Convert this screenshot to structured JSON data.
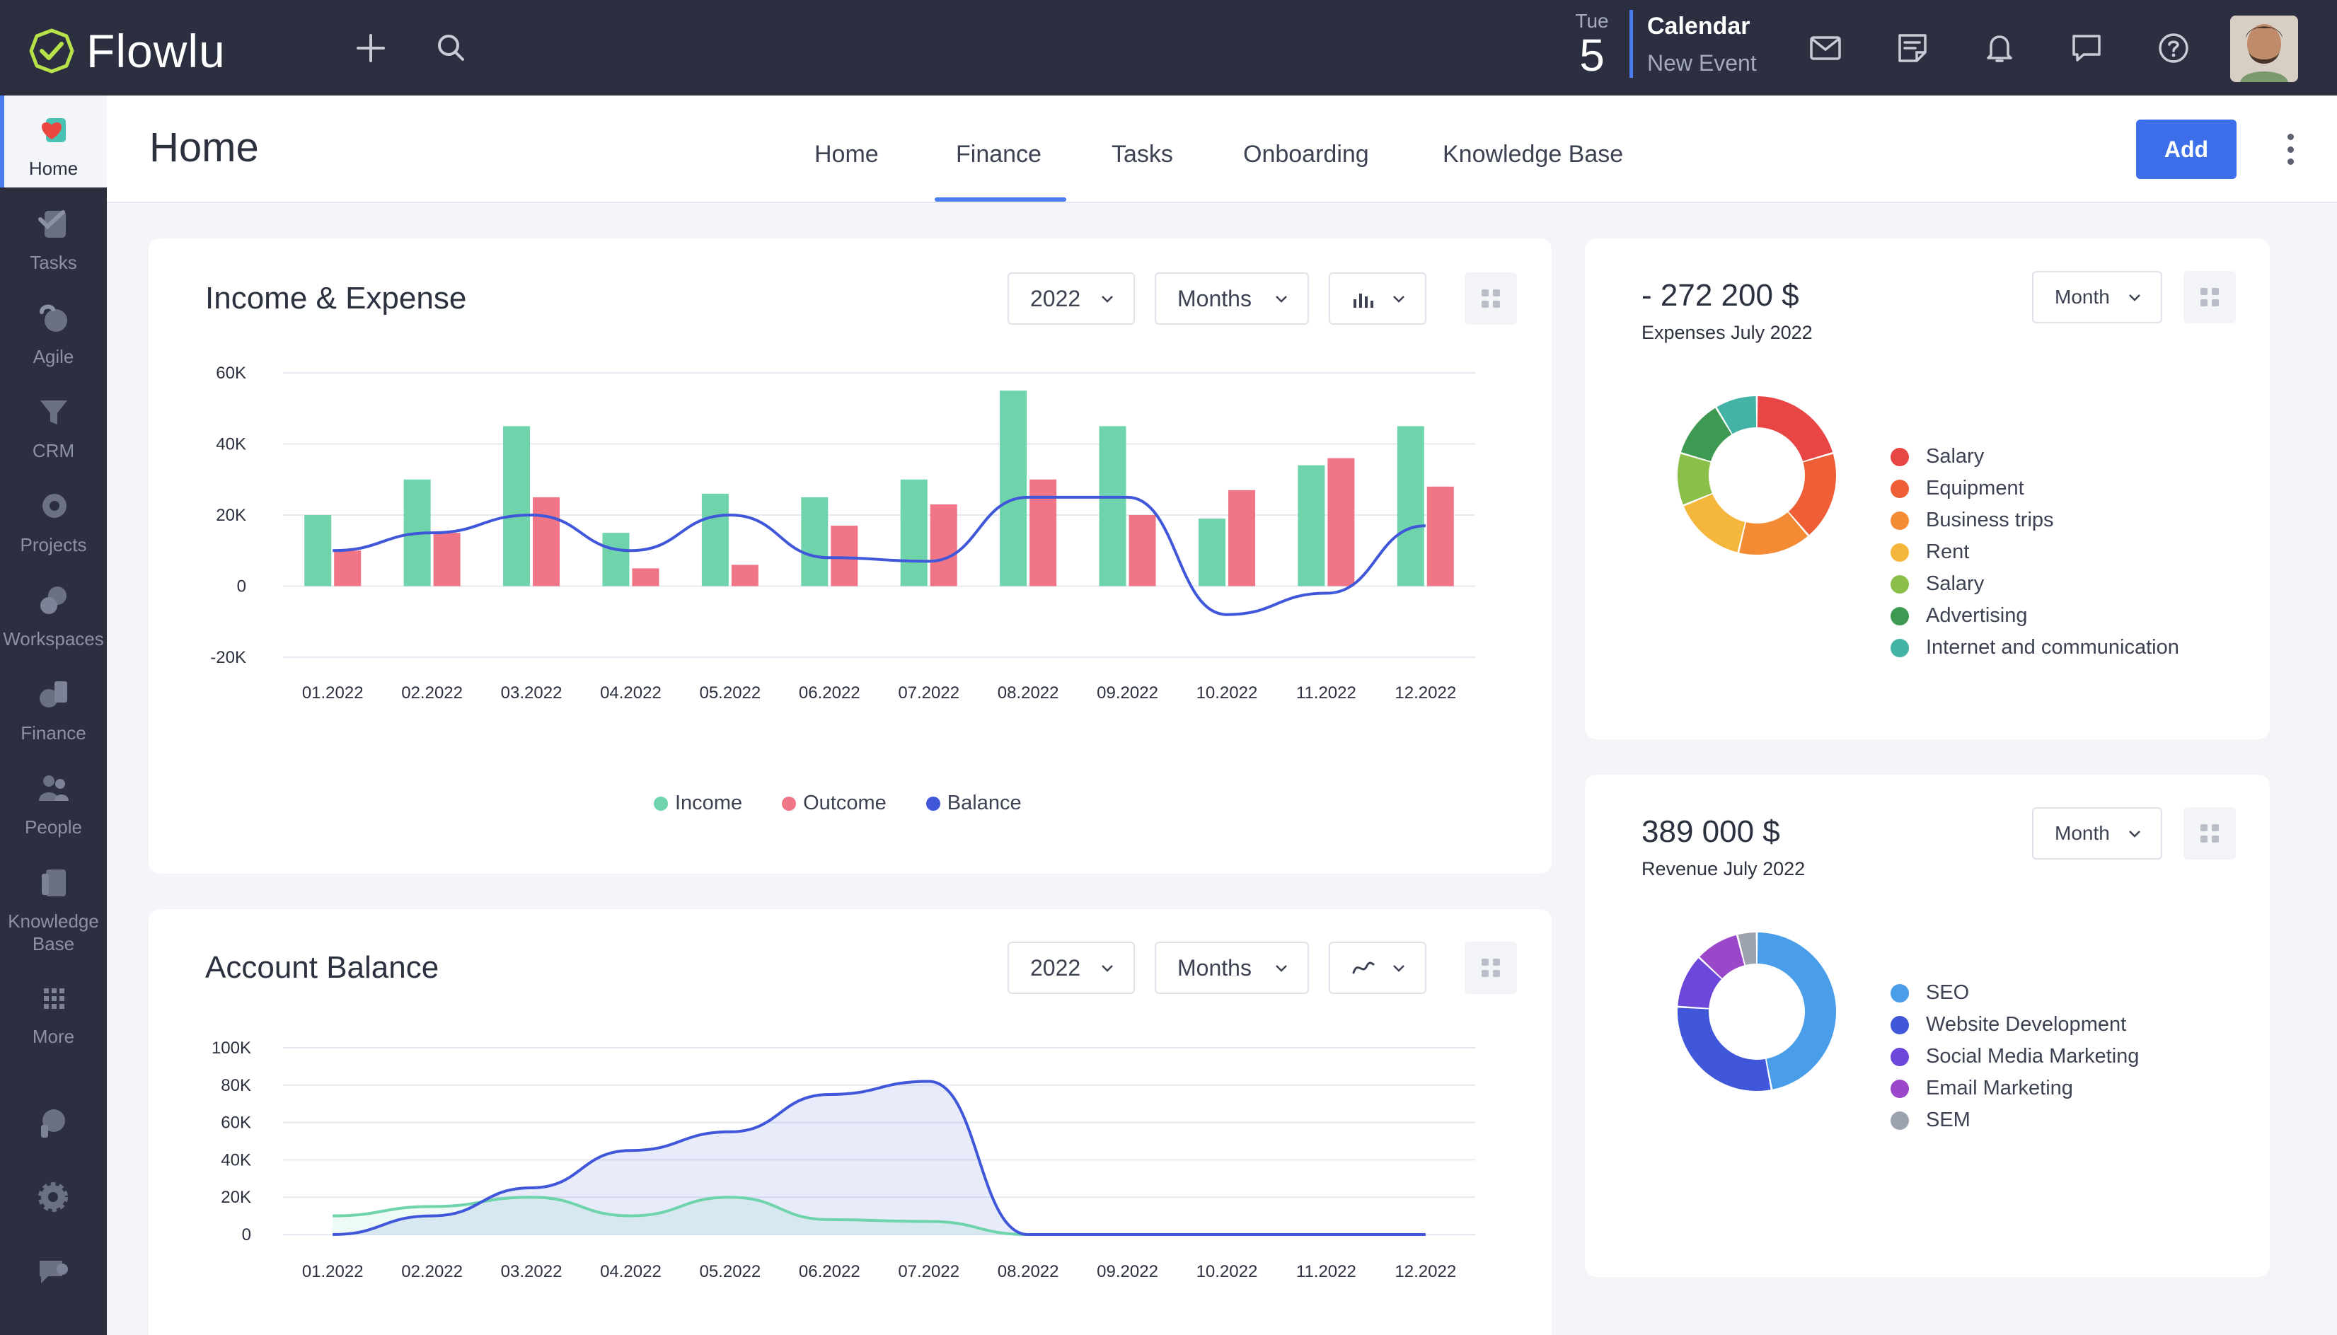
{
  "app": {
    "name": "Flowlu"
  },
  "topbar": {
    "date_dow": "Tue",
    "date_day": "5",
    "calendar_title": "Calendar",
    "calendar_sub": "New Event"
  },
  "sidebar": {
    "items": [
      {
        "label": "Home",
        "icon": "home-icon"
      },
      {
        "label": "Tasks",
        "icon": "tasks-icon"
      },
      {
        "label": "Agile",
        "icon": "agile-icon"
      },
      {
        "label": "CRM",
        "icon": "crm-funnel-icon"
      },
      {
        "label": "Projects",
        "icon": "projects-icon"
      },
      {
        "label": "Workspaces",
        "icon": "workspaces-icon"
      },
      {
        "label": "Finance",
        "icon": "finance-icon"
      },
      {
        "label": "People",
        "icon": "people-icon"
      },
      {
        "label": "Knowledge Base",
        "icon": "knowledge-base-icon"
      },
      {
        "label": "More",
        "icon": "grid-icon"
      }
    ]
  },
  "header": {
    "title": "Home",
    "tabs": [
      "Home",
      "Finance",
      "Tasks",
      "Onboarding",
      "Knowledge Base"
    ],
    "active_tab": "Finance",
    "add_label": "Add"
  },
  "income_card": {
    "title": "Income & Expense",
    "year": "2022",
    "period": "Months"
  },
  "balance_card": {
    "title": "Account Balance",
    "year": "2022",
    "period": "Months"
  },
  "expenses_card": {
    "amount": "- 272 200 $",
    "subtitle": "Expenses July 2022",
    "period": "Month"
  },
  "revenue_card": {
    "amount": "389 000 $",
    "subtitle": "Revenue July 2022",
    "period": "Month"
  },
  "colors": {
    "income": "#6fd3ac",
    "outcome": "#ef7587",
    "balance": "#3f57d8",
    "accent": "#3b6ee8"
  },
  "chart_data": [
    {
      "type": "bar",
      "title": "Income & Expense",
      "categories": [
        "01.2022",
        "02.2022",
        "03.2022",
        "04.2022",
        "05.2022",
        "06.2022",
        "07.2022",
        "08.2022",
        "09.2022",
        "10.2022",
        "11.2022",
        "12.2022"
      ],
      "series": [
        {
          "name": "Income",
          "type": "bar",
          "values": [
            20000,
            30000,
            45000,
            15000,
            26000,
            25000,
            30000,
            55000,
            45000,
            19000,
            34000,
            45000
          ]
        },
        {
          "name": "Outcome",
          "type": "bar",
          "values": [
            10000,
            15000,
            25000,
            5000,
            6000,
            17000,
            23000,
            30000,
            20000,
            27000,
            36000,
            28000
          ]
        },
        {
          "name": "Balance",
          "type": "line",
          "values": [
            10000,
            15000,
            20000,
            10000,
            20000,
            8000,
            7000,
            25000,
            25000,
            -8000,
            -2000,
            17000
          ]
        }
      ],
      "yticks": [
        "60K",
        "40K",
        "20K",
        "0",
        "-20K"
      ],
      "ylim": [
        -20000,
        60000
      ],
      "legend": "bottom"
    },
    {
      "type": "area",
      "title": "Account Balance",
      "categories": [
        "01.2022",
        "02.2022",
        "03.2022",
        "04.2022",
        "05.2022",
        "06.2022",
        "07.2022",
        "08.2022",
        "09.2022",
        "10.2022",
        "11.2022",
        "12.2022"
      ],
      "series": [
        {
          "values": [
            0,
            10000,
            25000,
            45000,
            55000,
            75000,
            82000,
            0,
            0,
            0,
            0,
            0
          ]
        },
        {
          "values": [
            10000,
            15000,
            20000,
            10000,
            20000,
            8000,
            7000,
            0,
            0,
            0,
            0,
            0
          ]
        }
      ],
      "yticks": [
        "100K",
        "80K",
        "60K",
        "40K",
        "20K",
        "0"
      ],
      "ylim": [
        0,
        100000
      ]
    },
    {
      "type": "pie",
      "title": "Expenses July 2022",
      "labels": [
        "Salary",
        "Equipment",
        "Business trips",
        "Rent",
        "Salary",
        "Advertising",
        "Internet and communication"
      ],
      "values": [
        19,
        17,
        14,
        14,
        10,
        11,
        8
      ],
      "colors": [
        "#e84545",
        "#ee5f37",
        "#f38a34",
        "#f5b63c",
        "#8bbf49",
        "#3e9a52",
        "#42b3a4"
      ]
    },
    {
      "type": "pie",
      "title": "Revenue July 2022",
      "labels": [
        "SEO",
        "Website Development",
        "Social Media Marketing",
        "Email Marketing",
        "SEM"
      ],
      "values": [
        47,
        29,
        11,
        9,
        4
      ],
      "colors": [
        "#4a9de8",
        "#3f57d8",
        "#6c47d9",
        "#9a48c9",
        "#9ca3af"
      ]
    }
  ]
}
